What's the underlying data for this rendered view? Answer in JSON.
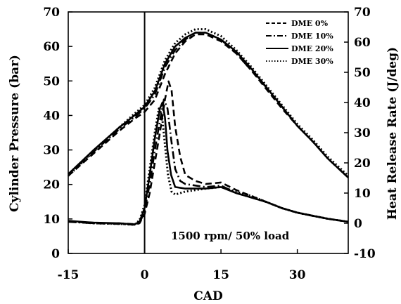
{
  "chart_data": {
    "type": "line",
    "xlabel": "CAD",
    "ylabel_left": "Cylinder Pressure (bar)",
    "ylabel_right": "Heat Release Rate (J/deg)",
    "xlim": [
      -15,
      40
    ],
    "xticks": [
      -15,
      0,
      15,
      30
    ],
    "ylim_left": [
      0,
      70
    ],
    "yticks_left": [
      0,
      10,
      20,
      30,
      40,
      50,
      60,
      70
    ],
    "ylim_right": [
      -10,
      70
    ],
    "yticks_right": [
      -10,
      0,
      10,
      20,
      30,
      40,
      50,
      60,
      70
    ],
    "vline_x": 0,
    "annotation": "1500 rpm/ 50% load",
    "legend_position": "top-right",
    "series": [
      {
        "name": "DME 0%",
        "style": "dashed",
        "pressure": [
          [
            -15,
            22.5
          ],
          [
            -10,
            29
          ],
          [
            -5,
            35.5
          ],
          [
            -2,
            39
          ],
          [
            0,
            41
          ],
          [
            2,
            44.5
          ],
          [
            4,
            52
          ],
          [
            6,
            58
          ],
          [
            8,
            61.5
          ],
          [
            10,
            63.5
          ],
          [
            12,
            63.5
          ],
          [
            15,
            61.5
          ],
          [
            18,
            58
          ],
          [
            21,
            53
          ],
          [
            24,
            47.5
          ],
          [
            27,
            42
          ],
          [
            30,
            37
          ],
          [
            33,
            32.5
          ],
          [
            36,
            27.5
          ],
          [
            40,
            22
          ]
        ],
        "hrr": [
          [
            -15,
            0.7
          ],
          [
            -10,
            0
          ],
          [
            -5,
            0
          ],
          [
            -2,
            -0.3
          ],
          [
            -1,
            0
          ],
          [
            0,
            3
          ],
          [
            1,
            10
          ],
          [
            2,
            20
          ],
          [
            3,
            30
          ],
          [
            4,
            41
          ],
          [
            4.7,
            47
          ],
          [
            5.3,
            44
          ],
          [
            6,
            32
          ],
          [
            7,
            22
          ],
          [
            8,
            16
          ],
          [
            9,
            15
          ],
          [
            10,
            14
          ],
          [
            12,
            13
          ],
          [
            15,
            13.5
          ],
          [
            18,
            11
          ],
          [
            21,
            9
          ],
          [
            24,
            7
          ],
          [
            27,
            5
          ],
          [
            30,
            3.5
          ],
          [
            33,
            2.5
          ],
          [
            36,
            1.5
          ],
          [
            40,
            0.5
          ]
        ]
      },
      {
        "name": "DME 10%",
        "style": "dashdot",
        "pressure": [
          [
            -15,
            23
          ],
          [
            -10,
            29.5
          ],
          [
            -5,
            36
          ],
          [
            -2,
            39.5
          ],
          [
            0,
            42
          ],
          [
            2,
            46
          ],
          [
            4,
            54
          ],
          [
            6,
            59
          ],
          [
            8,
            62
          ],
          [
            10,
            64
          ],
          [
            12,
            64
          ],
          [
            15,
            62
          ],
          [
            18,
            58
          ],
          [
            21,
            53
          ],
          [
            24,
            48
          ],
          [
            27,
            42.5
          ],
          [
            30,
            37
          ],
          [
            33,
            32.5
          ],
          [
            36,
            27.5
          ],
          [
            40,
            22
          ]
        ],
        "hrr": [
          [
            -15,
            0.5
          ],
          [
            -10,
            0
          ],
          [
            -5,
            -0.2
          ],
          [
            -2,
            -0.5
          ],
          [
            -1,
            0
          ],
          [
            0,
            4
          ],
          [
            1,
            13
          ],
          [
            2,
            24
          ],
          [
            3,
            34
          ],
          [
            3.8,
            41
          ],
          [
            4.5,
            38
          ],
          [
            5.2,
            28
          ],
          [
            6,
            18
          ],
          [
            7,
            14
          ],
          [
            8,
            13
          ],
          [
            10,
            12.5
          ],
          [
            12,
            12
          ],
          [
            15,
            12.5
          ],
          [
            18,
            10
          ],
          [
            21,
            8.5
          ],
          [
            24,
            7
          ],
          [
            27,
            5
          ],
          [
            30,
            3.5
          ],
          [
            33,
            2.5
          ],
          [
            36,
            1.5
          ],
          [
            40,
            0.5
          ]
        ]
      },
      {
        "name": "DME 20%",
        "style": "solid",
        "pressure": [
          [
            -15,
            23
          ],
          [
            -10,
            30
          ],
          [
            -5,
            36.5
          ],
          [
            -2,
            40
          ],
          [
            0,
            42.5
          ],
          [
            2,
            47
          ],
          [
            4,
            55
          ],
          [
            6,
            60
          ],
          [
            8,
            62.5
          ],
          [
            10,
            64
          ],
          [
            12,
            64
          ],
          [
            15,
            62
          ],
          [
            18,
            58.5
          ],
          [
            21,
            53.5
          ],
          [
            24,
            48
          ],
          [
            27,
            42.5
          ],
          [
            30,
            37
          ],
          [
            33,
            32.5
          ],
          [
            36,
            27.5
          ],
          [
            40,
            22
          ]
        ],
        "hrr": [
          [
            -15,
            0.8
          ],
          [
            -10,
            0.2
          ],
          [
            -5,
            0
          ],
          [
            -2,
            -0.4
          ],
          [
            -1,
            0.5
          ],
          [
            0,
            5
          ],
          [
            1,
            16
          ],
          [
            2,
            28
          ],
          [
            3,
            38
          ],
          [
            3.5,
            40
          ],
          [
            4,
            35
          ],
          [
            4.5,
            24
          ],
          [
            5.2,
            16
          ],
          [
            6,
            12
          ],
          [
            8,
            11.5
          ],
          [
            10,
            11.5
          ],
          [
            12,
            11.5
          ],
          [
            15,
            12
          ],
          [
            18,
            10
          ],
          [
            21,
            8.5
          ],
          [
            24,
            7
          ],
          [
            27,
            5
          ],
          [
            30,
            3.5
          ],
          [
            33,
            2.5
          ],
          [
            36,
            1.5
          ],
          [
            40,
            0.5
          ]
        ]
      },
      {
        "name": "DME 30%",
        "style": "dotted",
        "pressure": [
          [
            -15,
            22.5
          ],
          [
            -10,
            29.5
          ],
          [
            -5,
            36.5
          ],
          [
            -2,
            40.5
          ],
          [
            0,
            43
          ],
          [
            2,
            48
          ],
          [
            4,
            56
          ],
          [
            6,
            61
          ],
          [
            8,
            63.5
          ],
          [
            10,
            65
          ],
          [
            12,
            65
          ],
          [
            15,
            63
          ],
          [
            18,
            59
          ],
          [
            21,
            54
          ],
          [
            24,
            48.5
          ],
          [
            27,
            43
          ],
          [
            30,
            37.5
          ],
          [
            33,
            33
          ],
          [
            36,
            28
          ],
          [
            40,
            22.5
          ]
        ],
        "hrr": [
          [
            -15,
            0.6
          ],
          [
            -10,
            0
          ],
          [
            -5,
            -0.2
          ],
          [
            -2,
            -0.5
          ],
          [
            -1,
            1
          ],
          [
            0,
            6
          ],
          [
            1,
            18
          ],
          [
            2,
            30
          ],
          [
            2.8,
            38
          ],
          [
            3.4,
            36
          ],
          [
            4,
            26
          ],
          [
            4.6,
            16
          ],
          [
            5.3,
            10.5
          ],
          [
            6,
            9.5
          ],
          [
            7,
            10
          ],
          [
            8,
            10.5
          ],
          [
            10,
            11
          ],
          [
            12,
            11.5
          ],
          [
            15,
            12
          ],
          [
            18,
            10.5
          ],
          [
            21,
            9
          ],
          [
            24,
            7
          ],
          [
            27,
            5
          ],
          [
            30,
            3.5
          ],
          [
            33,
            2.5
          ],
          [
            36,
            1.5
          ],
          [
            40,
            0.5
          ]
        ]
      }
    ]
  }
}
